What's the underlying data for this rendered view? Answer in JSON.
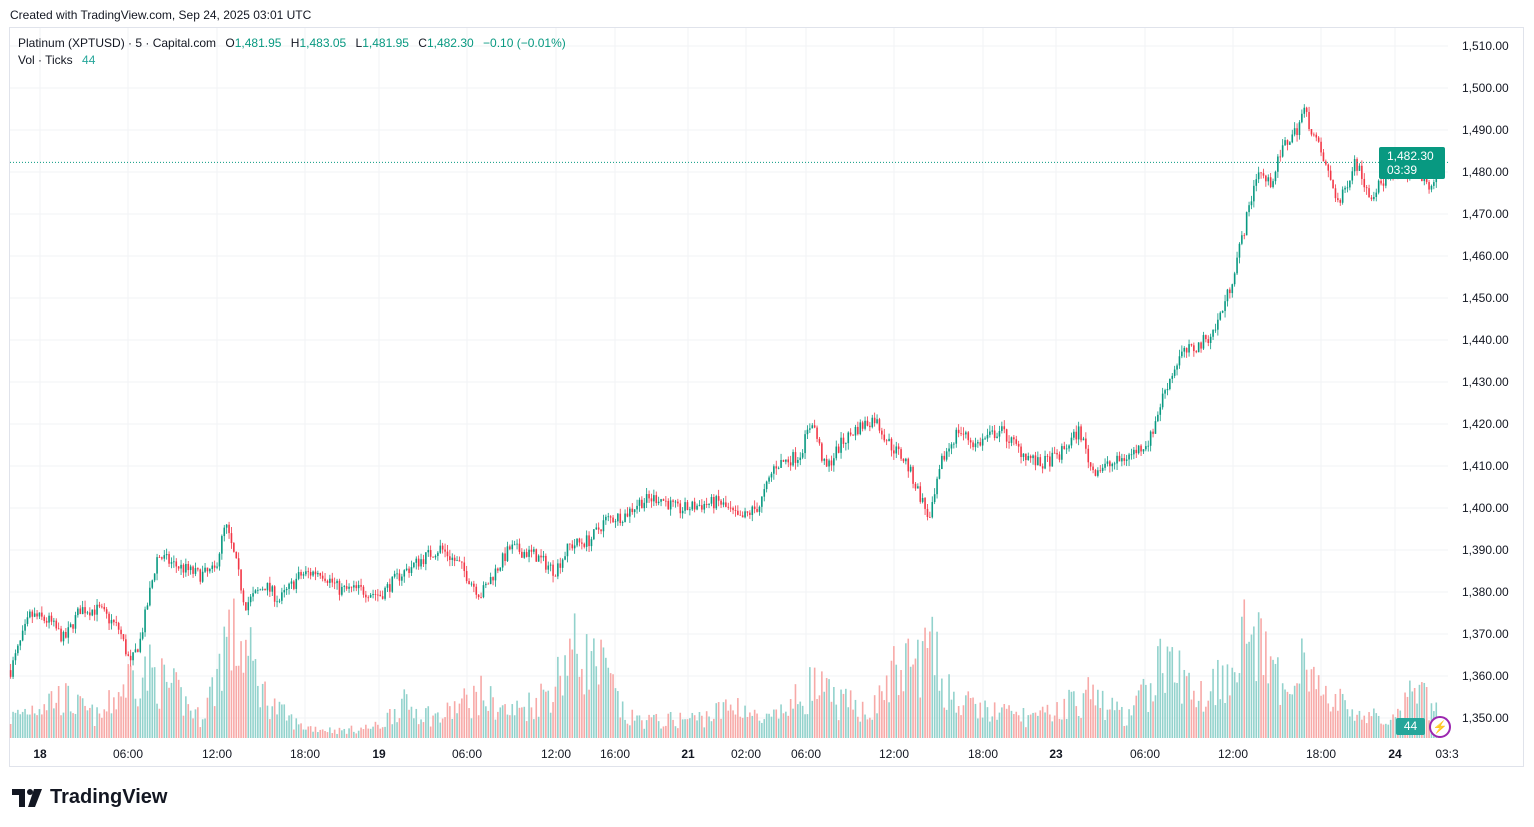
{
  "credit": "Created with TradingView.com, Sep 24, 2025 03:01 UTC",
  "legend": {
    "symbol": "Platinum (XPTUSD) · 5 · Capital.com",
    "open_label": "O",
    "open": "1,481.95",
    "high_label": "H",
    "high": "1,483.05",
    "low_label": "L",
    "low": "1,481.95",
    "close_label": "C",
    "close": "1,482.30",
    "change": "−0.10 (−0.01%)",
    "vol_label": "Vol · Ticks",
    "vol_value": "44"
  },
  "price_tag": {
    "price": "1,482.30",
    "countdown": "03:39"
  },
  "vol_tag": "44",
  "logo_text": "TradingView",
  "colors": {
    "up": "#089981",
    "down": "#f23645",
    "vol_up": "#92d2cc",
    "vol_down": "#f7a9a7",
    "grid": "#f2f3f5",
    "accent": "#9c27b0"
  },
  "chart_data": {
    "type": "candlestick",
    "interval": "5",
    "ylim": [
      1350,
      1510
    ],
    "y_ticks": [
      "1,350.00",
      "1,360.00",
      "1,370.00",
      "1,380.00",
      "1,390.00",
      "1,400.00",
      "1,410.00",
      "1,420.00",
      "1,430.00",
      "1,440.00",
      "1,450.00",
      "1,460.00",
      "1,470.00",
      "1,480.00",
      "1,490.00",
      "1,500.00",
      "1,510.00"
    ],
    "x_ticks": [
      {
        "label": "18",
        "time": "09-18 00:00",
        "bold": true
      },
      {
        "label": "06:00",
        "time": "09-18 06:00"
      },
      {
        "label": "12:00",
        "time": "09-18 12:00"
      },
      {
        "label": "18:00",
        "time": "09-18 18:00"
      },
      {
        "label": "19",
        "time": "09-19 00:00",
        "bold": true
      },
      {
        "label": "06:00",
        "time": "09-19 06:00"
      },
      {
        "label": "12:00",
        "time": "09-19 12:00"
      },
      {
        "label": "16:00",
        "time": "09-19 16:00"
      },
      {
        "label": "21",
        "time": "09-21 22:00",
        "bold": true
      },
      {
        "label": "02:00",
        "time": "09-22 02:00"
      },
      {
        "label": "06:00",
        "time": "09-22 06:00"
      },
      {
        "label": "12:00",
        "time": "09-22 12:00"
      },
      {
        "label": "18:00",
        "time": "09-22 18:00"
      },
      {
        "label": "23",
        "time": "09-23 00:00",
        "bold": true
      },
      {
        "label": "06:00",
        "time": "09-23 06:00"
      },
      {
        "label": "12:00",
        "time": "09-23 12:00"
      },
      {
        "label": "18:00",
        "time": "09-23 18:00"
      },
      {
        "label": "24",
        "time": "09-24 00:00",
        "bold": true
      },
      {
        "label": "03:3",
        "time": "09-24 03:30"
      }
    ],
    "last_price": 1482.3,
    "series": [
      [
        "09-17 22:00",
        1361.4,
        30
      ],
      [
        "09-17 23:20",
        1374.5,
        45
      ],
      [
        "09-18 00:40",
        1373,
        60
      ],
      [
        "09-18 01:40",
        1368.6,
        60
      ],
      [
        "09-18 02:45",
        1376,
        45
      ],
      [
        "09-18 04:05",
        1375.7,
        30
      ],
      [
        "09-18 05:25",
        1371,
        70
      ],
      [
        "09-18 06:10",
        1362.6,
        93
      ],
      [
        "09-18 06:50",
        1368.6,
        95
      ],
      [
        "09-18 07:30",
        1380.5,
        100
      ],
      [
        "09-18 08:00",
        1388.8,
        90
      ],
      [
        "09-18 09:10",
        1386.4,
        70
      ],
      [
        "09-18 10:50",
        1384,
        30
      ],
      [
        "09-18 11:50",
        1385,
        80
      ],
      [
        "09-18 12:35",
        1396,
        155
      ],
      [
        "09-18 13:15",
        1387.6,
        145
      ],
      [
        "09-18 13:55",
        1376.9,
        135
      ],
      [
        "09-18 15:15",
        1381.7,
        65
      ],
      [
        "09-18 16:15",
        1378,
        40
      ],
      [
        "09-18 17:40",
        1384,
        18
      ],
      [
        "09-18 19:15",
        1385,
        14
      ],
      [
        "09-18 20:50",
        1380.5,
        11
      ],
      [
        "09-18 22:30",
        1380.5,
        14
      ],
      [
        "09-19 00:05",
        1379.3,
        18
      ],
      [
        "09-19 01:25",
        1384,
        52
      ],
      [
        "09-19 02:50",
        1387.6,
        40
      ],
      [
        "09-19 04:10",
        1390.5,
        30
      ],
      [
        "09-19 05:30",
        1386.4,
        50
      ],
      [
        "09-19 06:55",
        1379.3,
        65
      ],
      [
        "09-19 07:55",
        1385,
        50
      ],
      [
        "09-19 08:55",
        1390.5,
        38
      ],
      [
        "09-19 10:35",
        1388.8,
        55
      ],
      [
        "09-19 11:55",
        1385,
        80
      ],
      [
        "09-19 12:55",
        1391,
        135
      ],
      [
        "09-19 14:20",
        1392.4,
        115
      ],
      [
        "09-19 15:20",
        1397.1,
        100
      ],
      [
        "09-19 16:40",
        1398.3,
        30
      ],
      [
        "09-19 17:40",
        1401.4,
        28
      ],
      [
        "09-19 19:00",
        1402.6,
        25
      ],
      [
        "09-19 20:20",
        1399.5,
        28
      ],
      [
        "09-21 22:50",
        1400.7,
        30
      ],
      [
        "09-22 00:10",
        1401.4,
        40
      ],
      [
        "09-22 01:35",
        1397.1,
        52
      ],
      [
        "09-22 02:55",
        1400.7,
        25
      ],
      [
        "09-22 03:55",
        1410.2,
        30
      ],
      [
        "09-22 05:35",
        1412.6,
        60
      ],
      [
        "09-22 06:25",
        1421,
        80
      ],
      [
        "09-22 07:20",
        1409,
        65
      ],
      [
        "09-22 08:20",
        1415,
        52
      ],
      [
        "09-22 09:20",
        1418.6,
        48
      ],
      [
        "09-22 10:40",
        1421.4,
        45
      ],
      [
        "09-22 11:45",
        1415,
        93
      ],
      [
        "09-22 12:45",
        1411.4,
        105
      ],
      [
        "09-22 13:45",
        1403,
        120
      ],
      [
        "09-22 14:25",
        1397.1,
        135
      ],
      [
        "09-22 15:15",
        1411.4,
        90
      ],
      [
        "09-22 16:20",
        1418.6,
        52
      ],
      [
        "09-22 17:30",
        1415,
        45
      ],
      [
        "09-22 19:25",
        1418.6,
        38
      ],
      [
        "09-22 21:00",
        1413.8,
        34
      ],
      [
        "09-22 22:40",
        1410.2,
        30
      ],
      [
        "09-23 00:15",
        1412.6,
        45
      ],
      [
        "09-23 01:35",
        1418.6,
        60
      ],
      [
        "09-23 02:25",
        1409,
        65
      ],
      [
        "09-23 03:40",
        1410.2,
        45
      ],
      [
        "09-23 05:00",
        1412.6,
        30
      ],
      [
        "09-23 06:20",
        1416.2,
        80
      ],
      [
        "09-23 07:20",
        1428,
        120
      ],
      [
        "09-23 08:25",
        1436.4,
        90
      ],
      [
        "09-23 09:45",
        1438.8,
        65
      ],
      [
        "09-23 10:45",
        1442.4,
        85
      ],
      [
        "09-23 11:45",
        1451.9,
        107
      ],
      [
        "09-23 12:50",
        1467.4,
        160
      ],
      [
        "09-23 13:40",
        1480.5,
        135
      ],
      [
        "09-23 14:30",
        1476.9,
        107
      ],
      [
        "09-23 15:30",
        1486.4,
        65
      ],
      [
        "09-23 16:20",
        1490,
        120
      ],
      [
        "09-23 16:50",
        1494.8,
        140
      ],
      [
        "09-23 17:55",
        1485.2,
        65
      ],
      [
        "09-23 19:30",
        1472.1,
        52
      ],
      [
        "09-23 20:45",
        1482.9,
        40
      ],
      [
        "09-23 22:00",
        1474.5,
        30
      ],
      [
        "09-23 23:10",
        1478.1,
        30
      ],
      [
        "09-24 00:20",
        1479.3,
        30
      ],
      [
        "09-24 01:20",
        1481.7,
        80
      ],
      [
        "09-24 02:20",
        1475.7,
        45
      ],
      [
        "09-24 03:00",
        1482.3,
        44
      ]
    ]
  }
}
